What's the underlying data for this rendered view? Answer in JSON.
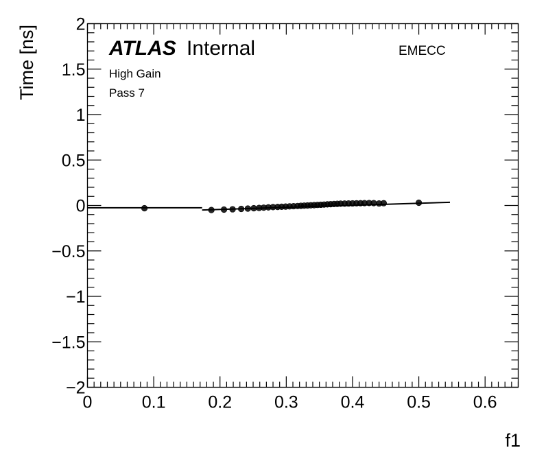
{
  "chart_data": {
    "type": "scatter",
    "title": "",
    "xlabel": "f1",
    "ylabel": "Time [ns]",
    "xlim": [
      0,
      0.65
    ],
    "ylim": [
      -2,
      2
    ],
    "x_ticks": [
      0,
      0.1,
      0.2,
      0.3,
      0.4,
      0.5,
      0.6
    ],
    "x_tick_labels": [
      "0",
      "0.1",
      "0.2",
      "0.3",
      "0.4",
      "0.5",
      "0.6"
    ],
    "y_ticks": [
      -2,
      -1.5,
      -1,
      -0.5,
      0,
      0.5,
      1,
      1.5,
      2
    ],
    "y_tick_labels": [
      "−2",
      "−1.5",
      "−1",
      "−0.5",
      "0",
      "0.5",
      "1",
      "1.5",
      "2"
    ],
    "grid": false,
    "annotations": {
      "atlas": "ATLAS",
      "internal": "Internal",
      "gain": "High Gain",
      "pass": "Pass 7",
      "region": "EMECC"
    },
    "series": [
      {
        "points": [
          {
            "x": 0.086,
            "y": -0.03
          },
          {
            "x": 0.187,
            "y": -0.05
          },
          {
            "x": 0.206,
            "y": -0.045
          },
          {
            "x": 0.219,
            "y": -0.042
          },
          {
            "x": 0.232,
            "y": -0.038
          },
          {
            "x": 0.242,
            "y": -0.034
          },
          {
            "x": 0.251,
            "y": -0.03
          },
          {
            "x": 0.259,
            "y": -0.027
          },
          {
            "x": 0.266,
            "y": -0.024
          },
          {
            "x": 0.273,
            "y": -0.021
          },
          {
            "x": 0.28,
            "y": -0.018
          },
          {
            "x": 0.287,
            "y": -0.016
          },
          {
            "x": 0.293,
            "y": -0.014
          },
          {
            "x": 0.299,
            "y": -0.012
          },
          {
            "x": 0.305,
            "y": -0.01
          },
          {
            "x": 0.311,
            "y": -0.008
          },
          {
            "x": 0.317,
            "y": -0.006
          },
          {
            "x": 0.322,
            "y": -0.004
          },
          {
            "x": 0.327,
            "y": -0.002
          },
          {
            "x": 0.332,
            "y": 0.0
          },
          {
            "x": 0.337,
            "y": 0.002
          },
          {
            "x": 0.342,
            "y": 0.004
          },
          {
            "x": 0.347,
            "y": 0.006
          },
          {
            "x": 0.352,
            "y": 0.008
          },
          {
            "x": 0.357,
            "y": 0.01
          },
          {
            "x": 0.362,
            "y": 0.012
          },
          {
            "x": 0.367,
            "y": 0.014
          },
          {
            "x": 0.372,
            "y": 0.016
          },
          {
            "x": 0.377,
            "y": 0.018
          },
          {
            "x": 0.382,
            "y": 0.02
          },
          {
            "x": 0.388,
            "y": 0.021
          },
          {
            "x": 0.394,
            "y": 0.022
          },
          {
            "x": 0.4,
            "y": 0.023
          },
          {
            "x": 0.406,
            "y": 0.024
          },
          {
            "x": 0.412,
            "y": 0.025
          },
          {
            "x": 0.418,
            "y": 0.026
          },
          {
            "x": 0.425,
            "y": 0.027
          },
          {
            "x": 0.432,
            "y": 0.026
          },
          {
            "x": 0.44,
            "y": 0.022
          },
          {
            "x": 0.447,
            "y": 0.025
          },
          {
            "x": 0.5,
            "y": 0.03
          }
        ],
        "fit_segments": [
          {
            "x": [
              0.0,
              0.173
            ],
            "y": [
              -0.025,
              -0.025
            ]
          },
          {
            "x": [
              0.173,
              0.547
            ],
            "y": [
              -0.05,
              0.035
            ]
          }
        ]
      }
    ]
  }
}
